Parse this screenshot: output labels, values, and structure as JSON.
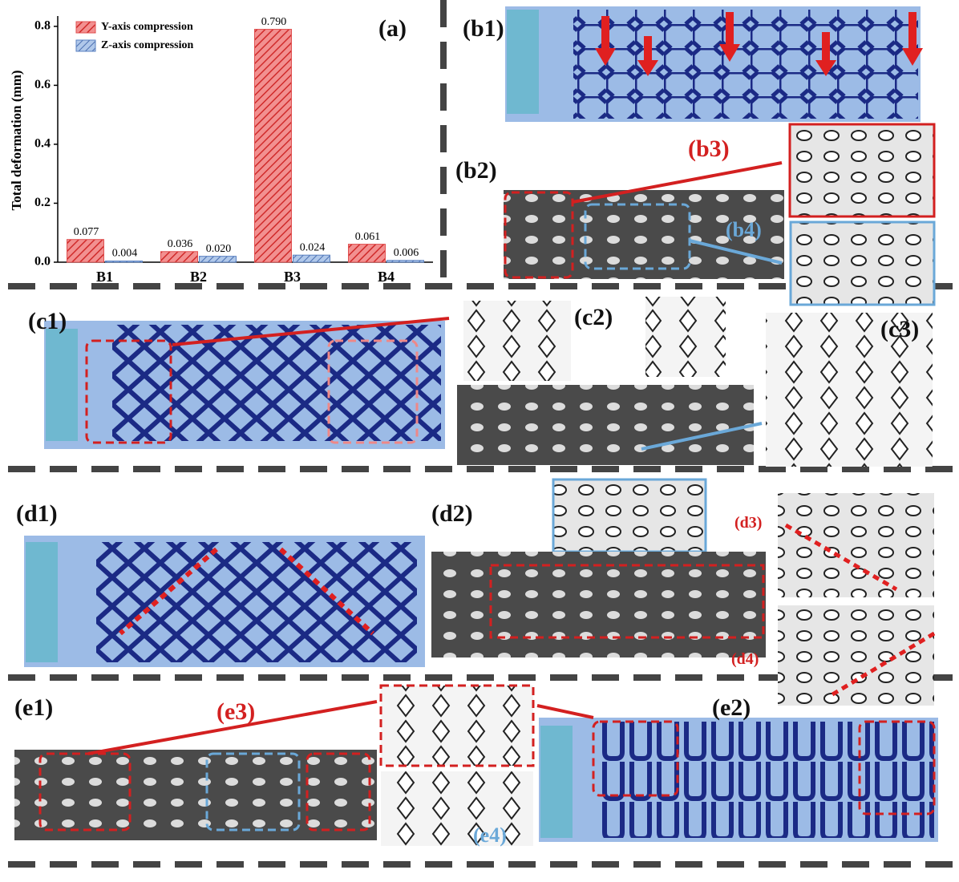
{
  "chart_data": {
    "type": "bar",
    "y_label": "Total deformation (mm)",
    "categories": [
      "B1",
      "B2",
      "B3",
      "B4"
    ],
    "series": [
      {
        "name": "Y-axis compression",
        "color": "#e05050",
        "values": [
          0.077,
          0.036,
          0.79,
          0.061
        ],
        "value_labels": [
          "0.077",
          "0.036",
          "0.790",
          "0.061"
        ]
      },
      {
        "name": "Z-axis compression",
        "color": "#5a80c0",
        "values": [
          0.004,
          0.02,
          0.024,
          0.006
        ],
        "value_labels": [
          "0.004",
          "0.020",
          "0.024",
          "0.006"
        ]
      }
    ],
    "ylim": [
      0,
      0.835
    ],
    "yticks": [
      {
        "value": 0,
        "label": "0.0"
      },
      0.2,
      0.4,
      0.6,
      0.8
    ],
    "legend": "upper left"
  },
  "panel_labels": {
    "a": "(a)",
    "b1": "(b1)",
    "b2": "(b2)",
    "b3": "(b3)",
    "b4": "(b4)",
    "c1": "(c1)",
    "c2": "(c2)",
    "c3": "(c3)",
    "d1": "(d1)",
    "d2": "(d2)",
    "d3": "(d3)",
    "d4": "(d4)",
    "e1": "(e1)",
    "e2": "(e2)",
    "e3": "(e3)",
    "e4": "(e4)"
  }
}
